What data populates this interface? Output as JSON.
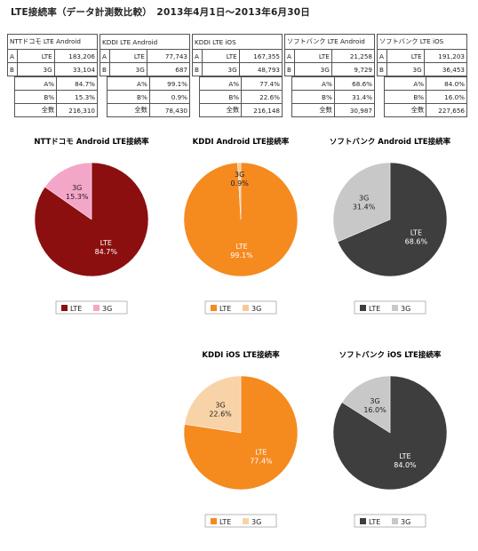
{
  "header": {
    "title": "LTE接続率（データ計測数比較）　2013年4月1日～2013年6月30日"
  },
  "tables": [
    {
      "name": "NTTドコモ LTE Android",
      "rows": [
        [
          "A",
          "LTE",
          "183,206"
        ],
        [
          "B",
          "3G",
          "33,104"
        ]
      ],
      "stats": [
        [
          "A%",
          "84.7%"
        ],
        [
          "B%",
          "15.3%"
        ],
        [
          "全数",
          "216,310"
        ]
      ]
    },
    {
      "name": "KDDI LTE Android",
      "rows": [
        [
          "A",
          "LTE",
          "77,743"
        ],
        [
          "B",
          "3G",
          "687"
        ]
      ],
      "stats": [
        [
          "A%",
          "99.1%"
        ],
        [
          "B%",
          "0.9%"
        ],
        [
          "全数",
          "78,430"
        ]
      ]
    },
    {
      "name": "KDDI LTE iOS",
      "rows": [
        [
          "A",
          "LTE",
          "167,355"
        ],
        [
          "B",
          "3G",
          "48,793"
        ]
      ],
      "stats": [
        [
          "A%",
          "77.4%"
        ],
        [
          "B%",
          "22.6%"
        ],
        [
          "全数",
          "216,148"
        ]
      ]
    },
    {
      "name": "ソフトバンク LTE Android",
      "rows": [
        [
          "A",
          "LTE",
          "21,258"
        ],
        [
          "B",
          "3G",
          "9,729"
        ]
      ],
      "stats": [
        [
          "A%",
          "68.6%"
        ],
        [
          "B%",
          "31.4%"
        ],
        [
          "全数",
          "30,987"
        ]
      ]
    },
    {
      "name": "ソフトバンク LTE iOS",
      "rows": [
        [
          "A",
          "LTE",
          "191,203"
        ],
        [
          "B",
          "3G",
          "36,453"
        ]
      ],
      "stats": [
        [
          "A%",
          "84.0%"
        ],
        [
          "B%",
          "16.0%"
        ],
        [
          "全数",
          "227,656"
        ]
      ]
    }
  ],
  "chart_data": [
    {
      "type": "pie",
      "title": "NTTドコモ Android LTE接続率",
      "labels": [
        "LTE",
        "3G"
      ],
      "values": [
        84.7,
        15.3
      ],
      "value_labels": [
        "84.7%",
        "15.3%"
      ],
      "colors": [
        "#8b0f0f",
        "#f4a6c9"
      ],
      "legend": "bottom"
    },
    {
      "type": "pie",
      "title": "KDDI Android LTE接続率",
      "labels": [
        "LTE",
        "3G"
      ],
      "values": [
        99.1,
        0.9
      ],
      "value_labels": [
        "99.1%",
        "0.9%"
      ],
      "colors": [
        "#f58a1f",
        "#f7c99a"
      ],
      "legend": "bottom"
    },
    {
      "type": "pie",
      "title": "ソフトバンク Android LTE接続率",
      "labels": [
        "LTE",
        "3G"
      ],
      "values": [
        68.6,
        31.4
      ],
      "value_labels": [
        "68.6%",
        "31.4%"
      ],
      "colors": [
        "#3e3e3e",
        "#c8c8c8"
      ],
      "legend": "bottom"
    },
    {
      "type": "pie",
      "title": "KDDI iOS LTE接続率",
      "labels": [
        "LTE",
        "3G"
      ],
      "values": [
        77.4,
        22.6
      ],
      "value_labels": [
        "77.4%",
        "22.6%"
      ],
      "colors": [
        "#f58a1f",
        "#f9d3a8"
      ],
      "legend": "bottom"
    },
    {
      "type": "pie",
      "title": "ソフトバンク iOS LTE接続率",
      "labels": [
        "LTE",
        "3G"
      ],
      "values": [
        84.0,
        16.0
      ],
      "value_labels": [
        "84.0%",
        "16.0%"
      ],
      "colors": [
        "#3e3e3e",
        "#c8c8c8"
      ],
      "legend": "bottom"
    }
  ]
}
